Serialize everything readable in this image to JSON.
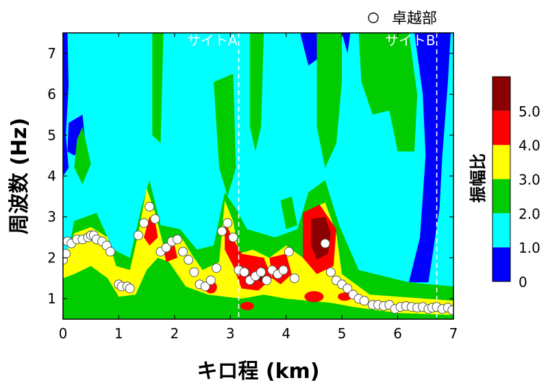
{
  "chart_data": {
    "type": "heatmap",
    "xlabel": "キロ程 (km)",
    "ylabel": "周波数 (Hz)",
    "xlim": [
      0,
      7
    ],
    "ylim": [
      0.5,
      7.5
    ],
    "x_ticks": [
      "0",
      "1",
      "2",
      "3",
      "4",
      "5",
      "6",
      "7"
    ],
    "y_ticks": [
      "1",
      "2",
      "3",
      "4",
      "5",
      "6",
      "7"
    ],
    "legend": {
      "symbol": "○",
      "label": "卓越部",
      "placement": "top-right"
    },
    "colorbar": {
      "title": "振幅比",
      "levels": [
        0,
        1.0,
        2.0,
        3.0,
        4.0,
        5.0
      ],
      "labels": [
        "0",
        "1.0",
        "2.0",
        "3.0",
        "4.0",
        "5.0"
      ],
      "colors": [
        "#0000ff",
        "#00ffff",
        "#00cc00",
        "#ffff00",
        "#ff0000",
        "#8b0000"
      ]
    },
    "sites": [
      {
        "name": "サイトA",
        "km": 3.15
      },
      {
        "name": "サイトB",
        "km": 6.7
      }
    ],
    "peak_points": [
      {
        "x": 0.0,
        "y": 1.95
      },
      {
        "x": 0.05,
        "y": 2.1
      },
      {
        "x": 0.08,
        "y": 2.4
      },
      {
        "x": 0.15,
        "y": 2.35
      },
      {
        "x": 0.25,
        "y": 2.45
      },
      {
        "x": 0.35,
        "y": 2.45
      },
      {
        "x": 0.45,
        "y": 2.5
      },
      {
        "x": 0.5,
        "y": 2.55
      },
      {
        "x": 0.55,
        "y": 2.55
      },
      {
        "x": 0.6,
        "y": 2.45
      },
      {
        "x": 0.7,
        "y": 2.4
      },
      {
        "x": 0.78,
        "y": 2.3
      },
      {
        "x": 0.85,
        "y": 2.15
      },
      {
        "x": 1.0,
        "y": 1.35
      },
      {
        "x": 1.05,
        "y": 1.3
      },
      {
        "x": 1.15,
        "y": 1.3
      },
      {
        "x": 1.2,
        "y": 1.25
      },
      {
        "x": 1.35,
        "y": 2.55
      },
      {
        "x": 1.45,
        "y": 2.85
      },
      {
        "x": 1.55,
        "y": 3.25
      },
      {
        "x": 1.65,
        "y": 2.95
      },
      {
        "x": 1.75,
        "y": 2.15
      },
      {
        "x": 1.85,
        "y": 2.25
      },
      {
        "x": 1.95,
        "y": 2.4
      },
      {
        "x": 2.05,
        "y": 2.45
      },
      {
        "x": 2.15,
        "y": 2.15
      },
      {
        "x": 2.25,
        "y": 1.95
      },
      {
        "x": 2.35,
        "y": 1.65
      },
      {
        "x": 2.45,
        "y": 1.35
      },
      {
        "x": 2.55,
        "y": 1.3
      },
      {
        "x": 2.65,
        "y": 1.45
      },
      {
        "x": 2.75,
        "y": 1.75
      },
      {
        "x": 2.85,
        "y": 2.65
      },
      {
        "x": 2.95,
        "y": 2.85
      },
      {
        "x": 3.05,
        "y": 2.5
      },
      {
        "x": 3.15,
        "y": 1.7
      },
      {
        "x": 3.25,
        "y": 1.65
      },
      {
        "x": 3.35,
        "y": 1.45
      },
      {
        "x": 3.45,
        "y": 1.55
      },
      {
        "x": 3.55,
        "y": 1.65
      },
      {
        "x": 3.65,
        "y": 1.45
      },
      {
        "x": 3.75,
        "y": 1.7
      },
      {
        "x": 3.85,
        "y": 1.6
      },
      {
        "x": 3.95,
        "y": 1.7
      },
      {
        "x": 4.05,
        "y": 2.15
      },
      {
        "x": 4.15,
        "y": 1.5
      },
      {
        "x": 4.7,
        "y": 2.35
      },
      {
        "x": 4.8,
        "y": 1.65
      },
      {
        "x": 4.9,
        "y": 1.45
      },
      {
        "x": 5.0,
        "y": 1.35
      },
      {
        "x": 5.1,
        "y": 1.25
      },
      {
        "x": 5.2,
        "y": 1.1
      },
      {
        "x": 5.3,
        "y": 1.0
      },
      {
        "x": 5.4,
        "y": 0.95
      },
      {
        "x": 5.55,
        "y": 0.85
      },
      {
        "x": 5.65,
        "y": 0.85
      },
      {
        "x": 5.75,
        "y": 0.82
      },
      {
        "x": 5.85,
        "y": 0.85
      },
      {
        "x": 5.95,
        "y": 0.75
      },
      {
        "x": 6.05,
        "y": 0.8
      },
      {
        "x": 6.15,
        "y": 0.82
      },
      {
        "x": 6.25,
        "y": 0.8
      },
      {
        "x": 6.35,
        "y": 0.78
      },
      {
        "x": 6.45,
        "y": 0.8
      },
      {
        "x": 6.55,
        "y": 0.75
      },
      {
        "x": 6.62,
        "y": 0.78
      },
      {
        "x": 6.7,
        "y": 0.8
      },
      {
        "x": 6.8,
        "y": 0.75
      },
      {
        "x": 6.9,
        "y": 0.78
      },
      {
        "x": 6.98,
        "y": 0.72
      }
    ]
  }
}
